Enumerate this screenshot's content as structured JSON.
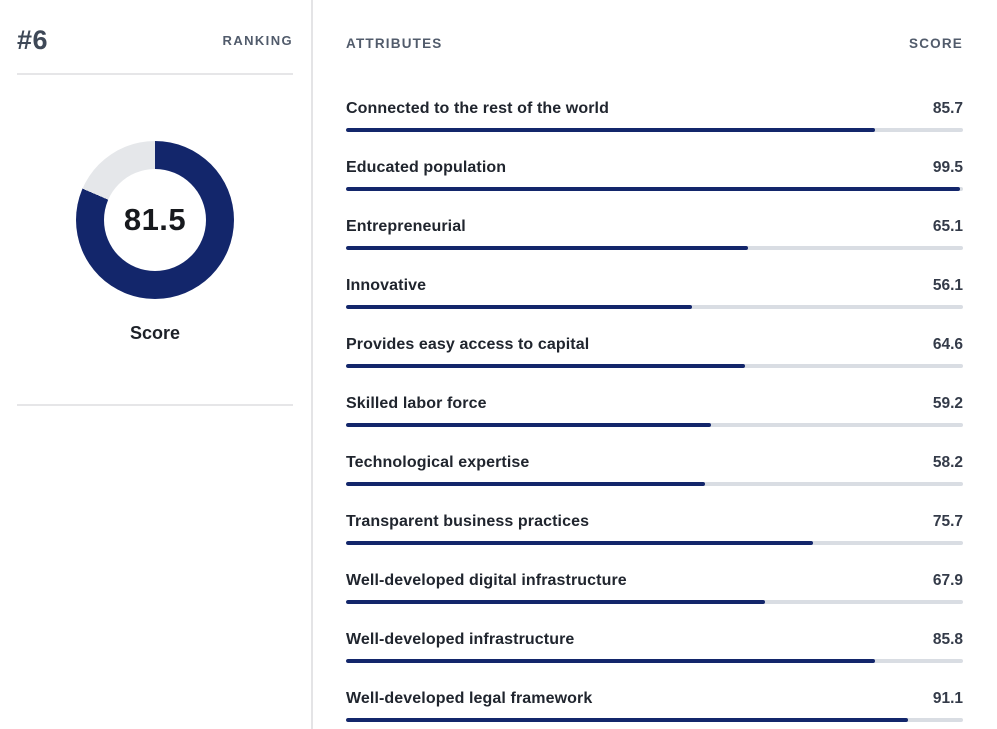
{
  "colors": {
    "navy": "#13266b",
    "bar_track": "#d9dde3",
    "donut_remainder": "#e5e7ea",
    "header_text": "#515b6b",
    "label_text": "#20252e",
    "score_text": "#343b49",
    "divider": "#e6e6e8"
  },
  "ranking_panel": {
    "rank": "#6",
    "ranking_label": "RANKING",
    "donut": {
      "value": 81.5,
      "max": 100,
      "display": "81.5"
    },
    "score_label": "Score"
  },
  "attributes_panel": {
    "attributes_header": "ATTRIBUTES",
    "score_header": "SCORE",
    "rows": [
      {
        "label": "Connected to the rest of the world",
        "score": "85.7",
        "percent": 85.7
      },
      {
        "label": "Educated population",
        "score": "99.5",
        "percent": 99.5
      },
      {
        "label": "Entrepreneurial",
        "score": "65.1",
        "percent": 65.1
      },
      {
        "label": "Innovative",
        "score": "56.1",
        "percent": 56.1
      },
      {
        "label": "Provides easy access to capital",
        "score": "64.6",
        "percent": 64.6
      },
      {
        "label": "Skilled labor force",
        "score": "59.2",
        "percent": 59.2
      },
      {
        "label": "Technological expertise",
        "score": "58.2",
        "percent": 58.2
      },
      {
        "label": "Transparent business practices",
        "score": "75.7",
        "percent": 75.7
      },
      {
        "label": "Well-developed digital infrastructure",
        "score": "67.9",
        "percent": 67.9
      },
      {
        "label": "Well-developed infrastructure",
        "score": "85.8",
        "percent": 85.8
      },
      {
        "label": "Well-developed legal framework",
        "score": "91.1",
        "percent": 91.1
      }
    ]
  },
  "chart_data": [
    {
      "type": "pie",
      "subtype": "donut",
      "title": "Score",
      "labels": [
        "Score",
        "Remainder"
      ],
      "values": [
        81.5,
        18.5
      ],
      "center_label": "81.5",
      "colors": [
        "#13266b",
        "#e5e7ea"
      ],
      "start_angle": "top",
      "direction": "clockwise"
    },
    {
      "type": "bar",
      "orientation": "horizontal",
      "title": "ATTRIBUTES",
      "value_header": "SCORE",
      "categories": [
        "Connected to the rest of the world",
        "Educated population",
        "Entrepreneurial",
        "Innovative",
        "Provides easy access to capital",
        "Skilled labor force",
        "Technological expertise",
        "Transparent business practices",
        "Well-developed digital infrastructure",
        "Well-developed infrastructure",
        "Well-developed legal framework"
      ],
      "values": [
        85.7,
        99.5,
        65.1,
        56.1,
        64.6,
        59.2,
        58.2,
        75.7,
        67.9,
        85.8,
        91.1
      ],
      "xlim": [
        0,
        100
      ],
      "grid": false,
      "legend": false,
      "data_labels": true,
      "bar_color": "#13266b",
      "track_color": "#d9dde3"
    }
  ]
}
